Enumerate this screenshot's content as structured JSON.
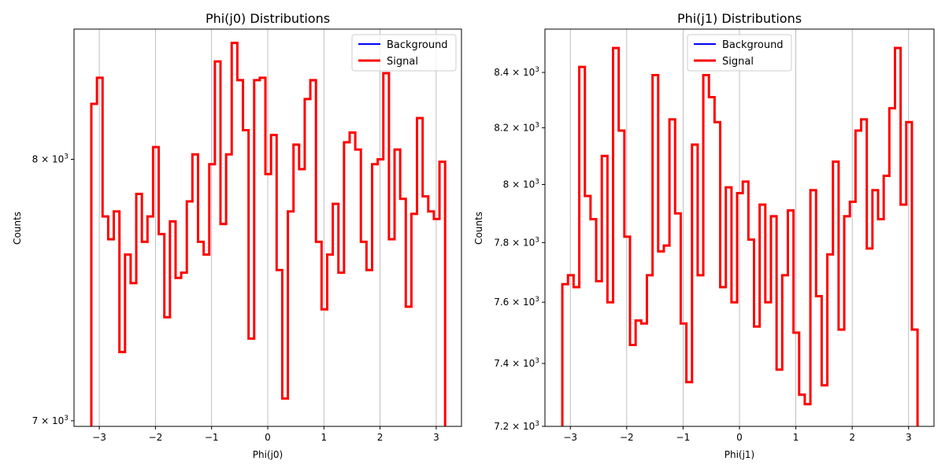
{
  "chart_data": [
    {
      "type": "line",
      "title": "Phi(j0) Distributions",
      "xlabel": "Phi(j0)",
      "ylabel": "Counts",
      "yscale": "log",
      "xlim": [
        -3.45,
        3.45
      ],
      "ylim": [
        6980,
        8550
      ],
      "xticks": [
        -3,
        -2,
        -1,
        0,
        1,
        2,
        3
      ],
      "xtick_labels": [
        "−3",
        "−2",
        "−1",
        "0",
        "1",
        "2",
        "3"
      ],
      "yticks": [
        {
          "value": 7000,
          "mantissa": "7",
          "base": "10",
          "exp": "3"
        },
        {
          "value": 8000,
          "mantissa": "8",
          "base": "10",
          "exp": "3"
        }
      ],
      "grid": "x",
      "legend_position": "top-right",
      "series": [
        {
          "name": "Background",
          "color": "#0000ff",
          "values": []
        },
        {
          "name": "Signal",
          "color": "#ff0000",
          "bin_start": -3.1416,
          "bin_width": 0.1,
          "values": [
            8230,
            8340,
            7770,
            7680,
            7790,
            7250,
            7620,
            7510,
            7860,
            7670,
            7770,
            8050,
            7700,
            7380,
            7750,
            7530,
            7550,
            7830,
            8020,
            7670,
            7620,
            7980,
            8410,
            7740,
            8020,
            8490,
            8330,
            8120,
            7300,
            8330,
            8340,
            7940,
            8100,
            7560,
            7080,
            7790,
            8060,
            7960,
            8250,
            8330,
            7670,
            7410,
            7620,
            7820,
            7550,
            8070,
            8110,
            8040,
            7670,
            7560,
            7980,
            8000,
            8360,
            7680,
            8040,
            7840,
            7420,
            7780,
            8170,
            7850,
            7790,
            7760,
            7990,
            6900
          ]
        }
      ]
    },
    {
      "type": "line",
      "title": "Phi(j1) Distributions",
      "xlabel": "Phi(j1)",
      "ylabel": "Counts",
      "yscale": "log",
      "xlim": [
        -3.45,
        3.45
      ],
      "ylim": [
        7200,
        8560
      ],
      "xticks": [
        -3,
        -2,
        -1,
        0,
        1,
        2,
        3
      ],
      "xtick_labels": [
        "−3",
        "−2",
        "−1",
        "0",
        "1",
        "2",
        "3"
      ],
      "yticks": [
        {
          "value": 7200,
          "mantissa": "7.2",
          "base": "10",
          "exp": "3"
        },
        {
          "value": 7400,
          "mantissa": "7.4",
          "base": "10",
          "exp": "3"
        },
        {
          "value": 7600,
          "mantissa": "7.6",
          "base": "10",
          "exp": "3"
        },
        {
          "value": 7800,
          "mantissa": "7.8",
          "base": "10",
          "exp": "3"
        },
        {
          "value": 8000,
          "mantissa": "8",
          "base": "10",
          "exp": "3"
        },
        {
          "value": 8200,
          "mantissa": "8.2",
          "base": "10",
          "exp": "3"
        },
        {
          "value": 8400,
          "mantissa": "8.4",
          "base": "10",
          "exp": "3"
        }
      ],
      "grid": "x",
      "legend_position": "top-center",
      "series": [
        {
          "name": "Background",
          "color": "#0000ff",
          "values": []
        },
        {
          "name": "Signal",
          "color": "#ff0000",
          "bin_start": -3.1416,
          "bin_width": 0.1,
          "values": [
            7660,
            7690,
            7650,
            8420,
            7960,
            7880,
            7670,
            8100,
            7600,
            8490,
            8190,
            7820,
            7460,
            7540,
            7530,
            7690,
            8390,
            7770,
            7790,
            8230,
            7900,
            7530,
            7340,
            8140,
            7690,
            8390,
            8310,
            8220,
            7650,
            7990,
            7600,
            7970,
            8010,
            7810,
            7520,
            7930,
            7600,
            7890,
            7380,
            7690,
            7910,
            7500,
            7300,
            7270,
            7980,
            7620,
            7330,
            7760,
            8080,
            7510,
            7890,
            7940,
            8190,
            8230,
            7780,
            7980,
            7880,
            8030,
            8270,
            8490,
            7930,
            8220,
            7510,
            7100
          ]
        }
      ]
    }
  ]
}
